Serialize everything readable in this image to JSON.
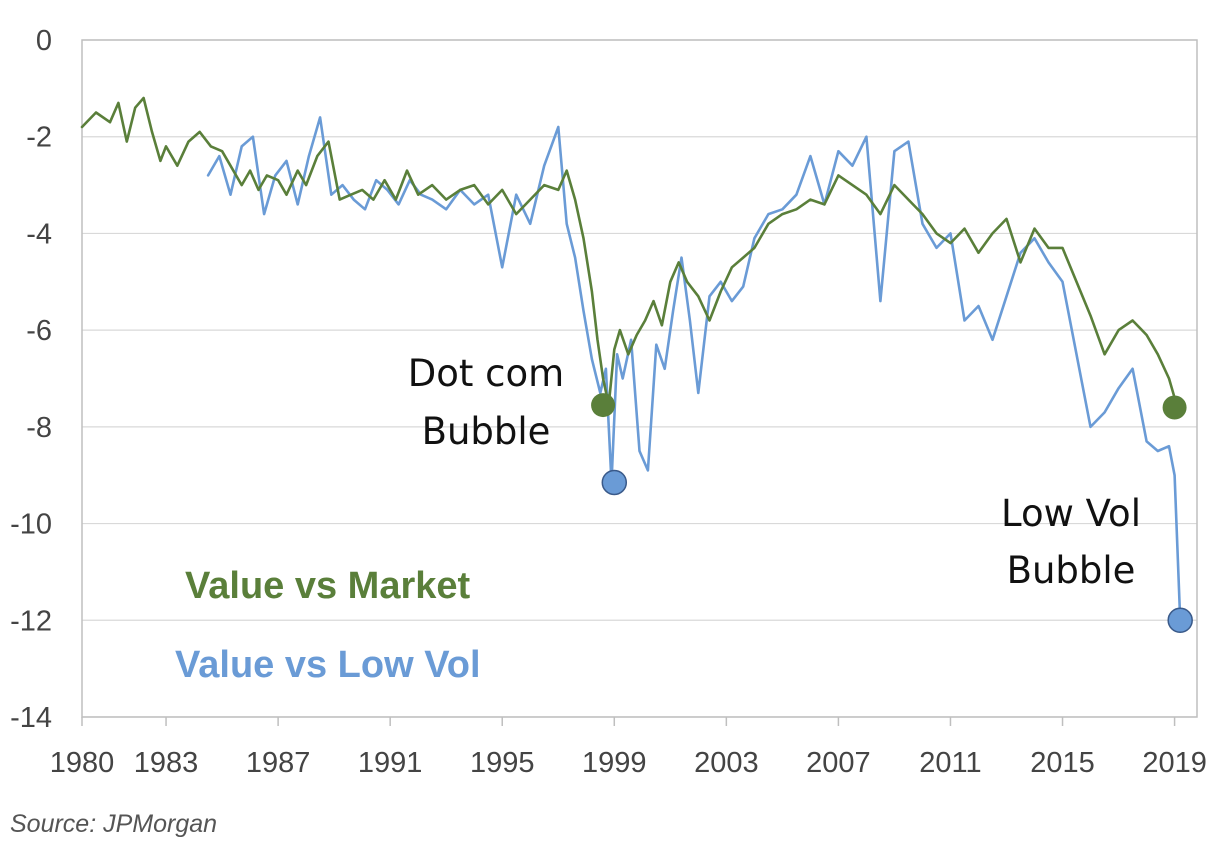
{
  "chart_data": {
    "type": "line",
    "title": "",
    "xlabel": "",
    "ylabel": "",
    "xlim": [
      1980,
      2019.8
    ],
    "ylim": [
      -14,
      0
    ],
    "y_ticks": [
      0,
      -2,
      -4,
      -6,
      -8,
      -10,
      -12,
      -14
    ],
    "x_ticks": [
      1980,
      1983,
      1987,
      1991,
      1995,
      1999,
      2003,
      2007,
      2011,
      2015,
      2019
    ],
    "grid": "horizontal",
    "colors": {
      "value_vs_market": "#5a7f3a",
      "value_vs_low_vol": "#6a9bd6",
      "grid": "#d9d9d9",
      "axis": "#bfbfbf"
    },
    "series": [
      {
        "name": "Value vs Market",
        "x": [
          1980,
          1980.5,
          1981,
          1981.3,
          1981.6,
          1981.9,
          1982.2,
          1982.5,
          1982.8,
          1983,
          1983.4,
          1983.8,
          1984.2,
          1984.6,
          1985,
          1985.3,
          1985.7,
          1986,
          1986.3,
          1986.6,
          1987,
          1987.3,
          1987.7,
          1988,
          1988.4,
          1988.8,
          1989.2,
          1989.6,
          1990,
          1990.4,
          1990.8,
          1991.2,
          1991.6,
          1992,
          1992.5,
          1993,
          1993.5,
          1994,
          1994.5,
          1995,
          1995.5,
          1996,
          1996.5,
          1997,
          1997.3,
          1997.6,
          1997.9,
          1998.2,
          1998.4,
          1998.6,
          1998.8,
          1999,
          1999.2,
          1999.5,
          1999.8,
          2000.1,
          2000.4,
          2000.7,
          2001,
          2001.3,
          2001.6,
          2002,
          2002.4,
          2002.8,
          2003.2,
          2003.6,
          2004,
          2004.5,
          2005,
          2005.5,
          2006,
          2006.5,
          2007,
          2007.5,
          2008,
          2008.5,
          2009,
          2009.5,
          2010,
          2010.5,
          2011,
          2011.5,
          2012,
          2012.5,
          2013,
          2013.5,
          2014,
          2014.5,
          2015,
          2015.5,
          2016,
          2016.5,
          2017,
          2017.5,
          2018,
          2018.4,
          2018.8,
          2019,
          2019.2
        ],
        "y": [
          -1.8,
          -1.5,
          -1.7,
          -1.3,
          -2.1,
          -1.4,
          -1.2,
          -1.9,
          -2.5,
          -2.2,
          -2.6,
          -2.1,
          -1.9,
          -2.2,
          -2.3,
          -2.6,
          -3.0,
          -2.7,
          -3.1,
          -2.8,
          -2.9,
          -3.2,
          -2.7,
          -3.0,
          -2.4,
          -2.1,
          -3.3,
          -3.2,
          -3.1,
          -3.3,
          -2.9,
          -3.3,
          -2.7,
          -3.2,
          -3.0,
          -3.3,
          -3.1,
          -3.0,
          -3.4,
          -3.1,
          -3.6,
          -3.3,
          -3.0,
          -3.1,
          -2.7,
          -3.3,
          -4.1,
          -5.2,
          -6.2,
          -7.0,
          -7.55,
          -6.4,
          -6.0,
          -6.5,
          -6.1,
          -5.8,
          -5.4,
          -5.9,
          -5.0,
          -4.6,
          -5.0,
          -5.3,
          -5.8,
          -5.2,
          -4.7,
          -4.5,
          -4.3,
          -3.8,
          -3.6,
          -3.5,
          -3.3,
          -3.4,
          -2.8,
          -3.0,
          -3.2,
          -3.6,
          -3.0,
          -3.3,
          -3.6,
          -4.0,
          -4.2,
          -3.9,
          -4.4,
          -4.0,
          -3.7,
          -4.6,
          -3.9,
          -4.3,
          -4.3,
          -5.0,
          -5.7,
          -6.5,
          -6.0,
          -5.8,
          -6.1,
          -6.5,
          -7.0,
          -7.4,
          -7.6
        ]
      },
      {
        "name": "Value vs Low Vol",
        "x": [
          1984.5,
          1984.9,
          1985.3,
          1985.7,
          1986.1,
          1986.5,
          1986.9,
          1987.3,
          1987.7,
          1988.1,
          1988.5,
          1988.9,
          1989.3,
          1989.7,
          1990.1,
          1990.5,
          1990.9,
          1991.3,
          1991.7,
          1992.1,
          1992.5,
          1993,
          1993.5,
          1994,
          1994.5,
          1995,
          1995.5,
          1996,
          1996.5,
          1997,
          1997.3,
          1997.6,
          1997.9,
          1998.2,
          1998.5,
          1998.7,
          1998.9,
          1999.1,
          1999.3,
          1999.6,
          1999.9,
          2000.2,
          2000.5,
          2000.8,
          2001.1,
          2001.4,
          2001.7,
          2002,
          2002.4,
          2002.8,
          2003.2,
          2003.6,
          2004,
          2004.5,
          2005,
          2005.5,
          2006,
          2006.5,
          2007,
          2007.5,
          2008,
          2008.5,
          2009,
          2009.5,
          2010,
          2010.5,
          2011,
          2011.5,
          2012,
          2012.5,
          2013,
          2013.5,
          2014,
          2014.5,
          2015,
          2015.5,
          2016,
          2016.5,
          2017,
          2017.5,
          2018,
          2018.4,
          2018.8,
          2019,
          2019.2
        ],
        "y": [
          -2.8,
          -2.4,
          -3.2,
          -2.2,
          -2.0,
          -3.6,
          -2.8,
          -2.5,
          -3.4,
          -2.4,
          -1.6,
          -3.2,
          -3.0,
          -3.3,
          -3.5,
          -2.9,
          -3.1,
          -3.4,
          -2.9,
          -3.2,
          -3.3,
          -3.5,
          -3.1,
          -3.4,
          -3.2,
          -4.7,
          -3.2,
          -3.8,
          -2.6,
          -1.8,
          -3.8,
          -4.5,
          -5.6,
          -6.6,
          -7.3,
          -6.8,
          -9.15,
          -6.5,
          -7.0,
          -6.2,
          -8.5,
          -8.9,
          -6.3,
          -6.8,
          -5.6,
          -4.5,
          -5.8,
          -7.3,
          -5.3,
          -5.0,
          -5.4,
          -5.1,
          -4.1,
          -3.6,
          -3.5,
          -3.2,
          -2.4,
          -3.4,
          -2.3,
          -2.6,
          -2.0,
          -5.4,
          -2.3,
          -2.1,
          -3.8,
          -4.3,
          -4.0,
          -5.8,
          -5.5,
          -6.2,
          -5.3,
          -4.4,
          -4.1,
          -4.6,
          -5.0,
          -6.5,
          -8.0,
          -7.7,
          -7.2,
          -6.8,
          -8.3,
          -8.5,
          -8.4,
          -9.0,
          -12.0
        ]
      }
    ],
    "markers": [
      {
        "series": "Value vs Market",
        "x": 1998.6,
        "y": -7.55
      },
      {
        "series": "Value vs Low Vol",
        "x": 1999.0,
        "y": -9.15
      },
      {
        "series": "Value vs Market",
        "x": 2019.0,
        "y": -7.6
      },
      {
        "series": "Value vs Low Vol",
        "x": 2019.2,
        "y": -12.0
      }
    ],
    "annotations": [
      {
        "lines": [
          "Dot com",
          "Bubble"
        ]
      },
      {
        "lines": [
          "Low Vol",
          "Bubble"
        ]
      }
    ],
    "legend": [
      {
        "label": "Value vs Market",
        "series": "Value vs Market"
      },
      {
        "label": "Value vs Low Vol",
        "series": "Value vs Low Vol"
      }
    ]
  },
  "source_text": "Source: JPMorgan"
}
